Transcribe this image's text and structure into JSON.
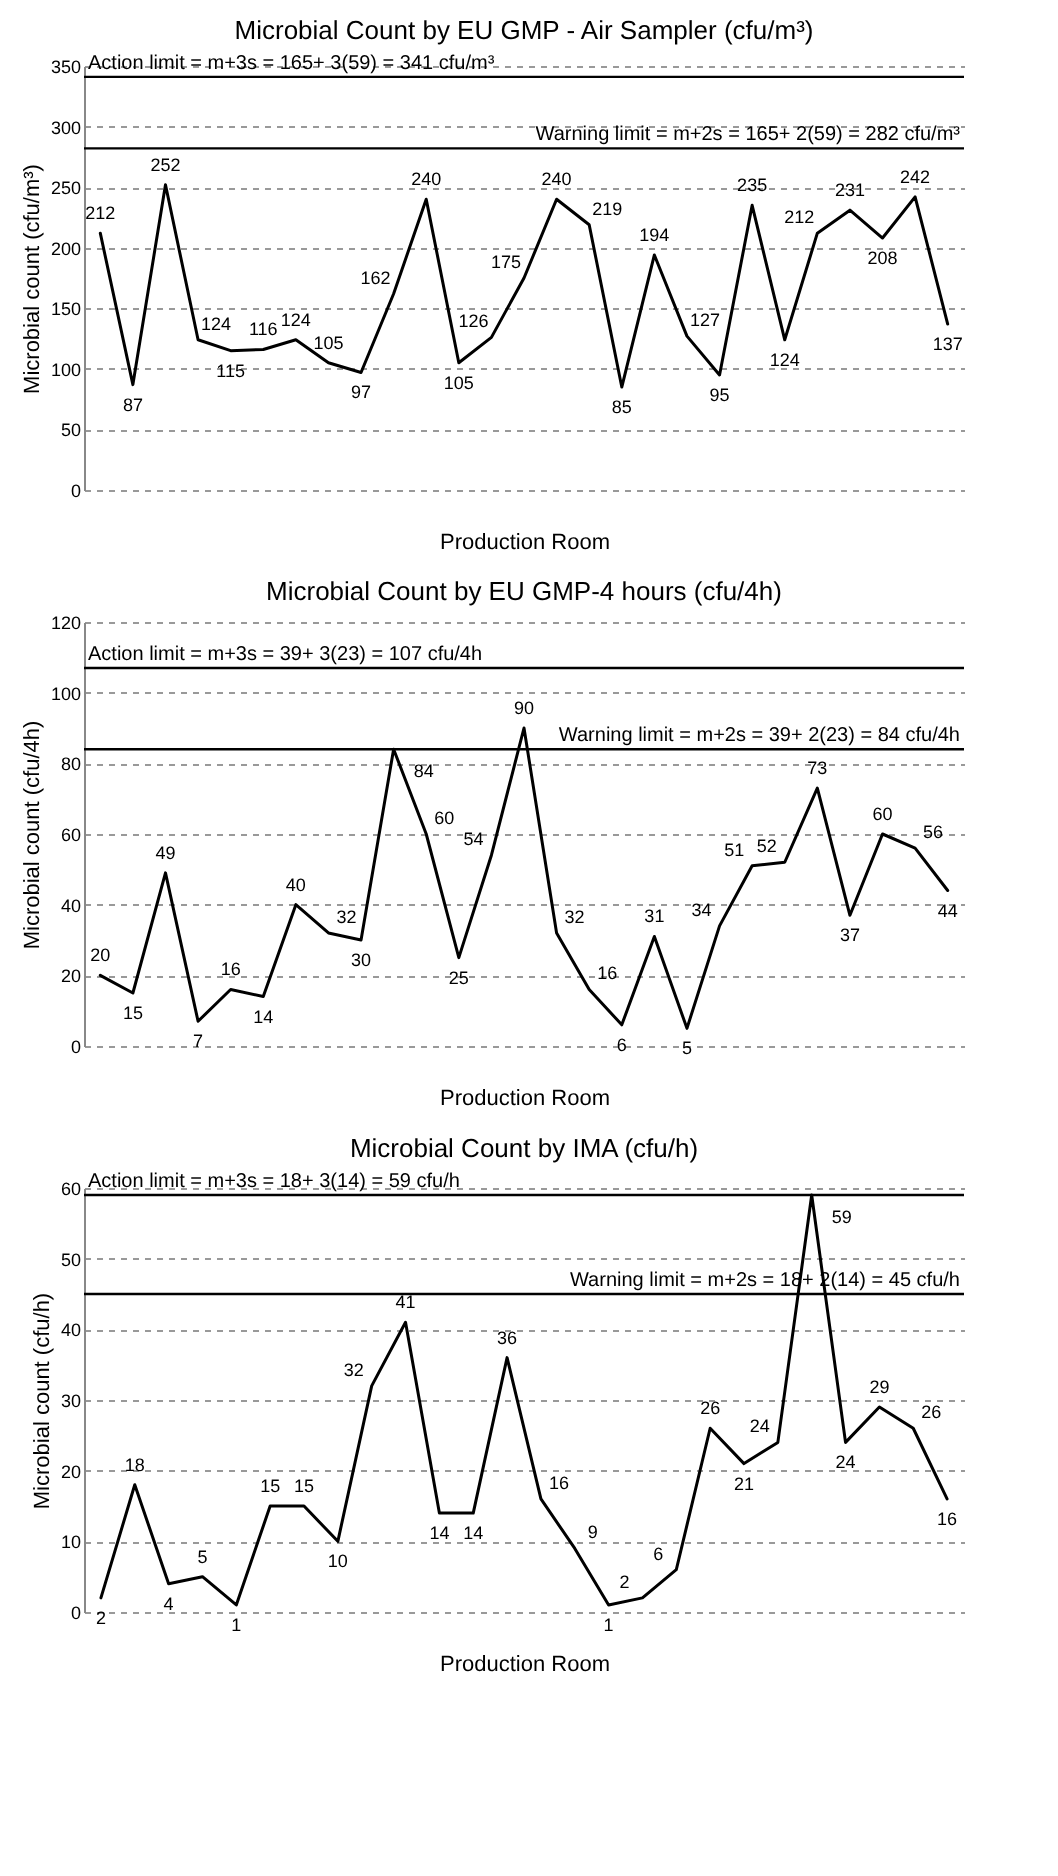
{
  "chart_data": [
    {
      "type": "line",
      "title": "Microbial Count by EU GMP - Air Sampler (cfu/m³)",
      "xlabel": "Production Room",
      "ylabel": "Microbial count (cfu/m³)",
      "categories": [
        null,
        null,
        null,
        null,
        null,
        null,
        null,
        null,
        null,
        null,
        null,
        null,
        null,
        null,
        null,
        null,
        null,
        null,
        null,
        null,
        null,
        null,
        null,
        null,
        null,
        null,
        null
      ],
      "series": [
        {
          "color": "#000000",
          "values": [
            212,
            87,
            252,
            124,
            115,
            116,
            124,
            105,
            97,
            162,
            240,
            105,
            126,
            175,
            240,
            219,
            85,
            194,
            127,
            95,
            235,
            124,
            212,
            231,
            208,
            242,
            137
          ]
        }
      ],
      "ylim": [
        0,
        350
      ],
      "yticks": [
        0,
        50,
        100,
        150,
        200,
        250,
        300,
        350
      ],
      "grid": "y",
      "data_labels": true,
      "ref_lines": [
        {
          "axis": "y",
          "value": 341,
          "label": "Action limit = m+3s = 165+ 3(59) = 341 cfu/m³"
        },
        {
          "axis": "y",
          "value": 282,
          "label": "Warning limit = m+2s = 165+ 2(59) = 282 cfu/m³"
        }
      ]
    },
    {
      "type": "line",
      "title": "Microbial Count by EU GMP-4 hours (cfu/4h)",
      "xlabel": "Production Room",
      "ylabel": "Microbial count (cfu/4h)",
      "categories": [
        null,
        null,
        null,
        null,
        null,
        null,
        null,
        null,
        null,
        null,
        null,
        null,
        null,
        null,
        null,
        null,
        null,
        null,
        null,
        null,
        null,
        null,
        null,
        null,
        null,
        null,
        null
      ],
      "series": [
        {
          "color": "#000000",
          "values": [
            20,
            15,
            49,
            7,
            16,
            14,
            40,
            32,
            30,
            84,
            60,
            25,
            54,
            90,
            32,
            16,
            6,
            31,
            5,
            34,
            51,
            52,
            73,
            37,
            60,
            56,
            44
          ]
        }
      ],
      "ylim": [
        0,
        120
      ],
      "yticks": [
        0,
        20,
        40,
        60,
        80,
        100,
        120
      ],
      "grid": "y",
      "data_labels": true,
      "ref_lines": [
        {
          "axis": "y",
          "value": 107,
          "label": "Action limit = m+3s = 39+ 3(23) = 107 cfu/4h"
        },
        {
          "axis": "y",
          "value": 84,
          "label": "Warning limit = m+2s = 39+ 2(23) = 84 cfu/4h"
        }
      ]
    },
    {
      "type": "line",
      "title": "Microbial Count by IMA (cfu/h)",
      "xlabel": "Production Room",
      "ylabel": "Microbial count (cfu/h)",
      "categories": [
        null,
        null,
        null,
        null,
        null,
        null,
        null,
        null,
        null,
        null,
        null,
        null,
        null,
        null,
        null,
        null,
        null,
        null,
        null,
        null,
        null,
        null,
        null,
        null,
        null,
        null
      ],
      "series": [
        {
          "color": "#000000",
          "values": [
            2,
            18,
            4,
            5,
            1,
            15,
            15,
            10,
            32,
            41,
            14,
            14,
            36,
            16,
            9,
            1,
            2,
            6,
            26,
            21,
            24,
            59,
            24,
            29,
            26,
            16
          ]
        }
      ],
      "ylim": [
        0,
        60
      ],
      "yticks": [
        0,
        10,
        20,
        30,
        40,
        50,
        60
      ],
      "grid": "y",
      "data_labels": true,
      "ref_lines": [
        {
          "axis": "y",
          "value": 59,
          "label": "Action limit = m+3s = 18+ 3(14) = 59 cfu/h"
        },
        {
          "axis": "y",
          "value": 45,
          "label": "Warning limit = m+2s = 18+ 2(14) = 45 cfu/h"
        }
      ]
    }
  ]
}
